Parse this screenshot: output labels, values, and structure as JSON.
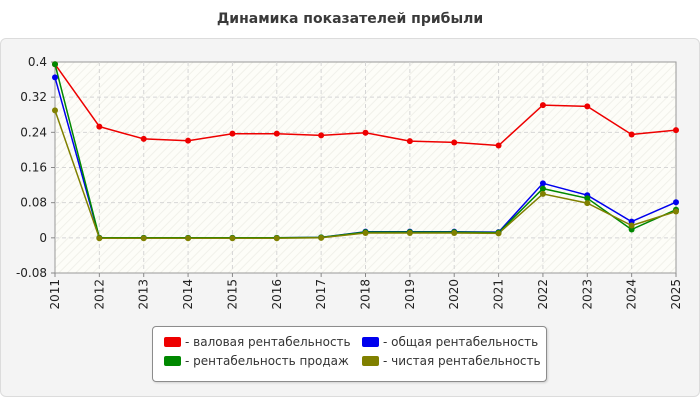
{
  "chart_data": {
    "type": "line",
    "title": "Динамика показателей прибыли",
    "categories": [
      "2011",
      "2012",
      "2013",
      "2014",
      "2015",
      "2016",
      "2017",
      "2018",
      "2019",
      "2020",
      "2021",
      "2022",
      "2023",
      "2024",
      "2025"
    ],
    "ylim": [
      -0.08,
      0.4
    ],
    "yticks": [
      "0.4",
      "0.32",
      "0.24",
      "0.16",
      "0.08",
      "0",
      "-0.08"
    ],
    "ytick_values": [
      0.4,
      0.32,
      0.24,
      0.16,
      0.08,
      0,
      -0.08
    ],
    "grid": true,
    "legend_position": "bottom",
    "series": [
      {
        "name": "- валовая рентабельность",
        "color": "#ee0000",
        "values": [
          0.395,
          0.253,
          0.225,
          0.221,
          0.237,
          0.237,
          0.233,
          0.239,
          0.22,
          0.217,
          0.21,
          0.302,
          0.299,
          0.235,
          0.245
        ]
      },
      {
        "name": "- общая рентабельность",
        "color": "#0000ee",
        "values": [
          0.365,
          0.0,
          0.0,
          0.0,
          0.0,
          0.0,
          0.001,
          0.014,
          0.014,
          0.014,
          0.013,
          0.124,
          0.097,
          0.037,
          0.081
        ]
      },
      {
        "name": "- рентабельность продаж",
        "color": "#008800",
        "values": [
          0.395,
          0.0,
          0.0,
          0.0,
          0.0,
          0.0,
          0.001,
          0.013,
          0.013,
          0.013,
          0.012,
          0.112,
          0.09,
          0.019,
          0.064
        ]
      },
      {
        "name": "- чистая рентабельность",
        "color": "#808000",
        "values": [
          0.29,
          -0.001,
          -0.001,
          -0.001,
          -0.001,
          -0.001,
          0.0,
          0.011,
          0.011,
          0.011,
          0.01,
          0.1,
          0.079,
          0.028,
          0.06
        ]
      }
    ]
  }
}
